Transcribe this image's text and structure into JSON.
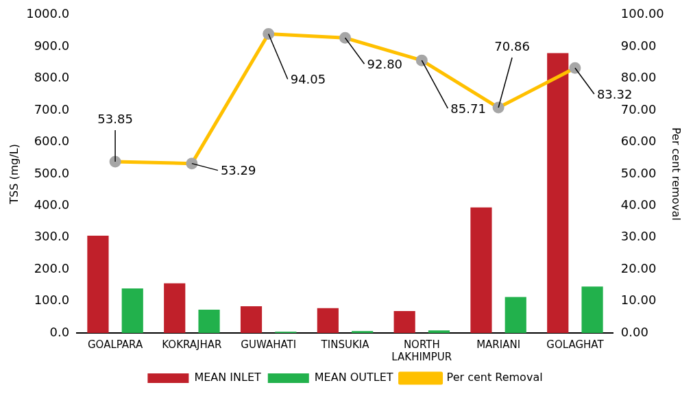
{
  "chart_data": {
    "type": "bar",
    "categories": [
      "GOALPARA",
      "KOKRAJHAR",
      "GUWAHATI",
      "TINSUKIA",
      "NORTH LAKHIMPUR",
      "MARIANI",
      "GOLAGHAT"
    ],
    "ylabel": "TSS (mg/L)",
    "y2label": "Per cent removal",
    "ylim": [
      0,
      1000
    ],
    "yticks": [
      {
        "value": 0,
        "label": "0.0"
      },
      {
        "value": 100,
        "label": "100.0"
      },
      {
        "value": 200,
        "label": "200.0"
      },
      {
        "value": 300,
        "label": "300.0"
      },
      {
        "value": 400,
        "label": "400.0"
      },
      {
        "value": 500,
        "label": "500.0"
      },
      {
        "value": 600,
        "label": "600.0"
      },
      {
        "value": 700,
        "label": "700.0"
      },
      {
        "value": 800,
        "label": "800.0"
      },
      {
        "value": 900,
        "label": "900.0"
      },
      {
        "value": 1000,
        "label": "1000.0"
      }
    ],
    "y2lim": [
      0,
      100
    ],
    "y2ticks": [
      {
        "value": 0,
        "label": "0.00"
      },
      {
        "value": 10,
        "label": "10.00"
      },
      {
        "value": 20,
        "label": "20.00"
      },
      {
        "value": 30,
        "label": "30.00"
      },
      {
        "value": 40,
        "label": "40.00"
      },
      {
        "value": 50,
        "label": "50.00"
      },
      {
        "value": 60,
        "label": "60.00"
      },
      {
        "value": 70,
        "label": "70.00"
      },
      {
        "value": 80,
        "label": "80.00"
      },
      {
        "value": 90,
        "label": "90.00"
      },
      {
        "value": 100,
        "label": "100.00"
      }
    ],
    "grid": false,
    "legend": "bottom",
    "series": [
      {
        "name": "MEAN INLET",
        "color": "#c0202a",
        "values": [
          306,
          156,
          84,
          78,
          69,
          395,
          880
        ]
      },
      {
        "name": "MEAN OUTLET",
        "color": "#22b14c",
        "values": [
          140,
          73,
          4,
          6,
          8,
          113,
          146
        ]
      },
      {
        "name": "Per cent Removal",
        "type": "line",
        "axis": "y2",
        "color": "#ffc000",
        "marker": "circle",
        "values": [
          53.85,
          53.29,
          94.05,
          92.8,
          85.71,
          70.86,
          83.32
        ],
        "value_labels": [
          "53.85",
          "53.29",
          "94.05",
          "92.80",
          "85.71",
          "70.86",
          "83.32"
        ]
      }
    ]
  }
}
